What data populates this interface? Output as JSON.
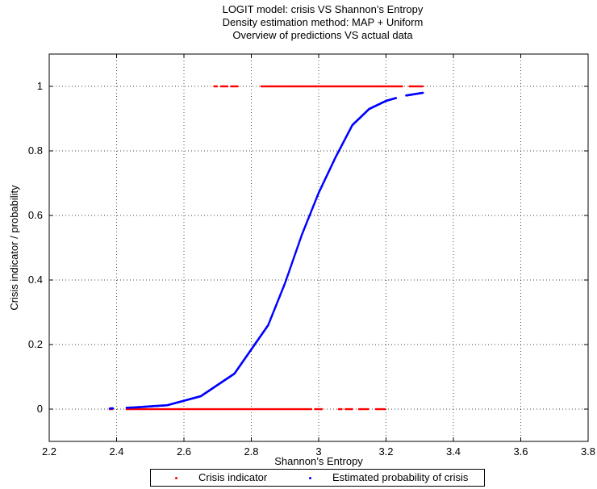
{
  "chart_data": {
    "type": "scatter",
    "title_lines": [
      "LOGIT model: crisis VS Shannon’s Entropy",
      "Density estimation method: MAP + Uniform",
      "Overview of predictions VS actual data"
    ],
    "xlabel": "Shannon’s Entropy",
    "ylabel": "Crisis indicator / probability",
    "xlim": [
      2.2,
      3.8
    ],
    "ylim": [
      -0.1,
      1.1
    ],
    "x_ticks": [
      "2.2",
      "2.4",
      "2.6",
      "2.8",
      "3",
      "3.2",
      "3.4",
      "3.6",
      "3.8"
    ],
    "y_ticks": [
      "0",
      "0.2",
      "0.4",
      "0.6",
      "0.8",
      "1"
    ],
    "grid": true,
    "legend_position": "bottom-center",
    "series": [
      {
        "name": "Crisis indicator",
        "color": "#ff0000",
        "marker": "dot",
        "y": [
          0,
          1
        ],
        "segments_y0": [
          [
            2.38,
            2.39
          ],
          [
            2.43,
            2.98
          ],
          [
            2.99,
            3.01
          ],
          [
            3.06,
            3.07
          ],
          [
            3.08,
            3.1
          ],
          [
            3.12,
            3.15
          ],
          [
            3.17,
            3.2
          ]
        ],
        "segments_y1": [
          [
            2.69,
            2.7
          ],
          [
            2.71,
            2.73
          ],
          [
            2.74,
            2.76
          ],
          [
            2.83,
            3.25
          ],
          [
            3.27,
            3.31
          ]
        ]
      },
      {
        "name": "Estimated probability of crisis",
        "color": "#0000ff",
        "marker": "dot",
        "model": "logistic",
        "points": [
          {
            "x": 2.38,
            "y": 0.002
          },
          {
            "x": 2.45,
            "y": 0.005
          },
          {
            "x": 2.55,
            "y": 0.012
          },
          {
            "x": 2.65,
            "y": 0.04
          },
          {
            "x": 2.75,
            "y": 0.11
          },
          {
            "x": 2.85,
            "y": 0.26
          },
          {
            "x": 2.9,
            "y": 0.39
          },
          {
            "x": 2.95,
            "y": 0.54
          },
          {
            "x": 3.0,
            "y": 0.67
          },
          {
            "x": 3.05,
            "y": 0.78
          },
          {
            "x": 3.1,
            "y": 0.88
          },
          {
            "x": 3.15,
            "y": 0.93
          },
          {
            "x": 3.2,
            "y": 0.955
          },
          {
            "x": 3.25,
            "y": 0.97
          },
          {
            "x": 3.31,
            "y": 0.98
          }
        ]
      }
    ]
  }
}
